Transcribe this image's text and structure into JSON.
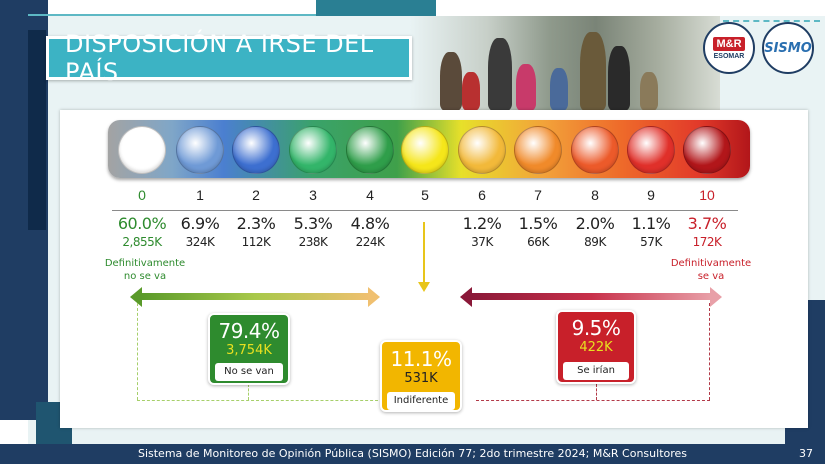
{
  "title": "DISPOSICIÓN A IRSE DEL PAÍS",
  "logos": {
    "mr": "M&R",
    "esomar": "ESOMAR",
    "sismo": "SISMO"
  },
  "scale": {
    "points": [
      {
        "num": "0",
        "pct": "60.0%",
        "count": "2,855K",
        "color": "#ffffff"
      },
      {
        "num": "1",
        "pct": "6.9%",
        "count": "324K",
        "color": "#6f9ad6"
      },
      {
        "num": "2",
        "pct": "2.3%",
        "count": "112K",
        "color": "#3d6fd0"
      },
      {
        "num": "3",
        "pct": "5.3%",
        "count": "238K",
        "color": "#33b56a"
      },
      {
        "num": "4",
        "pct": "4.8%",
        "count": "224K",
        "color": "#2f9e4a"
      },
      {
        "num": "5",
        "pct": "",
        "count": "",
        "color": "#f5e61a"
      },
      {
        "num": "6",
        "pct": "1.2%",
        "count": "37K",
        "color": "#f2b93a"
      },
      {
        "num": "7",
        "pct": "1.5%",
        "count": "66K",
        "color": "#f08a2a"
      },
      {
        "num": "8",
        "pct": "2.0%",
        "count": "89K",
        "color": "#ec5a2a"
      },
      {
        "num": "9",
        "pct": "1.1%",
        "count": "57K",
        "color": "#e0302a"
      },
      {
        "num": "10",
        "pct": "3.7%",
        "count": "172K",
        "color": "#b2161a"
      }
    ],
    "left_label": [
      "Definitivamente",
      "no se va"
    ],
    "right_label": [
      "Definitivamente",
      "se va"
    ]
  },
  "summary": {
    "no_se_van": {
      "pct": "79.4%",
      "count": "3,754K",
      "label": "No se van",
      "color": "#2e8b2e"
    },
    "indiferente": {
      "pct": "11.1%",
      "count": "531K",
      "label": "Indiferente",
      "color": "#f2b600"
    },
    "se_irian": {
      "pct": "9.5%",
      "count": "422K",
      "label": "Se irían",
      "color": "#c8202a"
    }
  },
  "footer": {
    "text": "Sistema de Monitoreo de Opinión Pública (SISMO) Edición 77; 2do trimestre 2024; M&R Consultores",
    "page": "37"
  }
}
